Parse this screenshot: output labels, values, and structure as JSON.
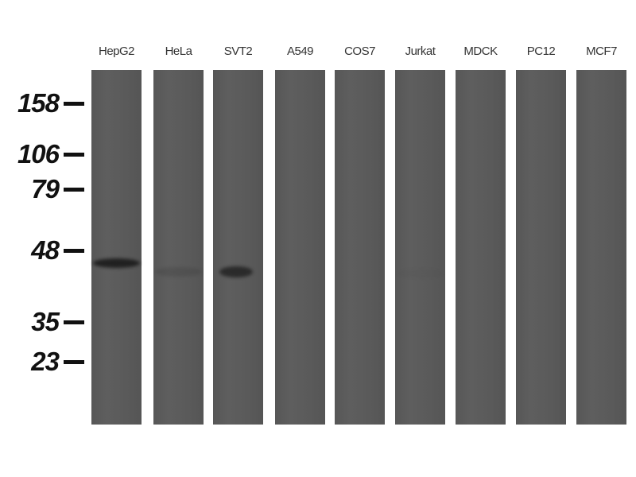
{
  "lanes": [
    {
      "label": "HepG2",
      "band_intensity": 0.9
    },
    {
      "label": "HeLa",
      "band_intensity": 0.15
    },
    {
      "label": "SVT2",
      "band_intensity": 0.75
    },
    {
      "label": "A549",
      "band_intensity": 0
    },
    {
      "label": "COS7",
      "band_intensity": 0
    },
    {
      "label": "Jurkat",
      "band_intensity": 0.03
    },
    {
      "label": "MDCK",
      "band_intensity": 0
    },
    {
      "label": "PC12",
      "band_intensity": 0
    },
    {
      "label": "MCF7",
      "band_intensity": 0
    }
  ],
  "markers": [
    "158",
    "106",
    "79",
    "48",
    "35",
    "23"
  ],
  "colors": {
    "lane": "#5a5a5a",
    "band": "#1a1a1a"
  }
}
